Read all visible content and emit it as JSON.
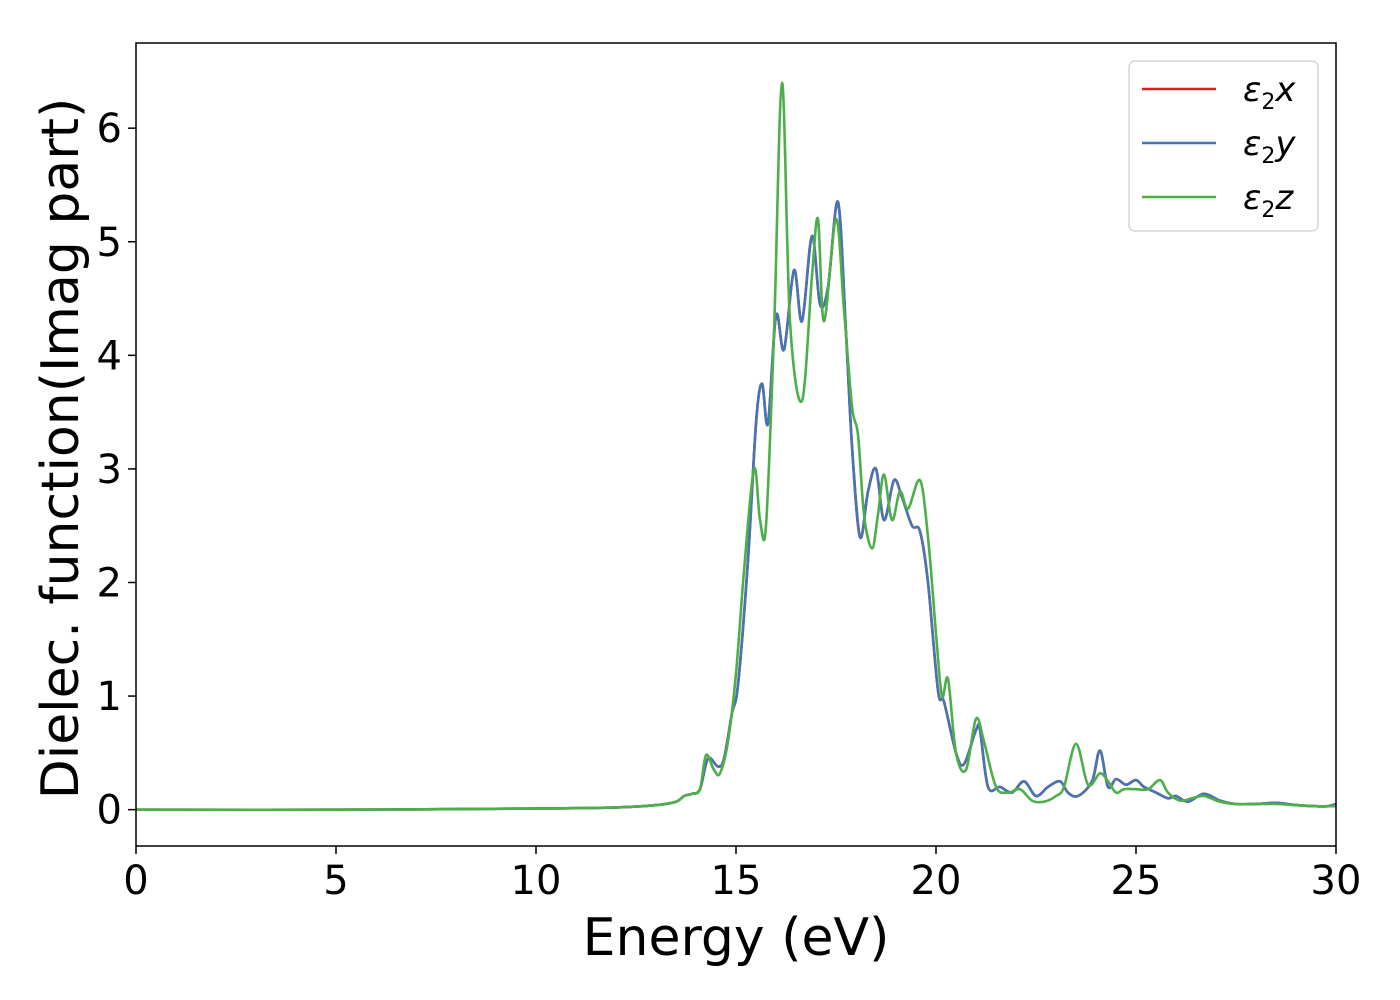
{
  "chart_data": {
    "type": "line",
    "title": "",
    "xlabel": "Energy (eV)",
    "ylabel": "Dielec. function(Imag part)",
    "xlim": [
      0,
      30
    ],
    "ylim": [
      -0.32,
      6.75
    ],
    "xticks": [
      0,
      5,
      10,
      15,
      20,
      25,
      30
    ],
    "yticks": [
      0,
      1,
      2,
      3,
      4,
      5,
      6
    ],
    "xtick_labels": [
      "0",
      "5",
      "10",
      "15",
      "20",
      "25",
      "30"
    ],
    "ytick_labels": [
      "0",
      "1",
      "2",
      "3",
      "4",
      "5",
      "6"
    ],
    "grid": false,
    "legend_position": "top-right",
    "series": [
      {
        "name": "ε2x",
        "legend_base": "ε",
        "legend_sub": "2",
        "legend_var": "x",
        "color": "#e41a1c",
        "x": [
          0,
          5,
          10,
          12,
          13,
          13.5,
          13.7,
          13.9,
          14.1,
          14.3,
          14.55,
          14.7,
          14.9,
          15.05,
          15.3,
          15.5,
          15.65,
          15.8,
          16.0,
          16.2,
          16.45,
          16.65,
          16.9,
          17.1,
          17.3,
          17.55,
          17.75,
          17.9,
          18.1,
          18.3,
          18.5,
          18.7,
          18.95,
          19.15,
          19.4,
          19.6,
          19.8,
          20.05,
          20.2,
          20.5,
          20.7,
          21.0,
          21.1,
          21.3,
          21.6,
          21.9,
          22.2,
          22.5,
          22.8,
          23.1,
          23.3,
          23.55,
          23.9,
          24.1,
          24.3,
          24.5,
          24.75,
          25.0,
          25.2,
          25.5,
          25.8,
          26.0,
          26.3,
          26.7,
          27.1,
          27.5,
          28.0,
          28.5,
          29.0,
          29.5,
          29.8,
          30.0
        ],
        "y": [
          0.0,
          0.0,
          0.01,
          0.02,
          0.04,
          0.07,
          0.12,
          0.14,
          0.18,
          0.45,
          0.38,
          0.45,
          0.85,
          1.1,
          2.2,
          3.4,
          3.75,
          3.4,
          4.35,
          4.05,
          4.75,
          4.3,
          5.05,
          4.45,
          4.6,
          5.35,
          4.2,
          3.2,
          2.4,
          2.8,
          3.0,
          2.55,
          2.9,
          2.75,
          2.5,
          2.45,
          2.0,
          1.05,
          0.95,
          0.5,
          0.4,
          0.7,
          0.7,
          0.2,
          0.2,
          0.15,
          0.25,
          0.12,
          0.2,
          0.25,
          0.15,
          0.12,
          0.25,
          0.52,
          0.2,
          0.27,
          0.22,
          0.26,
          0.2,
          0.15,
          0.1,
          0.12,
          0.07,
          0.14,
          0.08,
          0.05,
          0.05,
          0.06,
          0.04,
          0.03,
          0.03,
          0.05
        ]
      },
      {
        "name": "ε2y",
        "legend_base": "ε",
        "legend_sub": "2",
        "legend_var": "y",
        "color": "#4575b4",
        "x": [
          0,
          5,
          10,
          12,
          13,
          13.5,
          13.7,
          13.9,
          14.1,
          14.3,
          14.55,
          14.7,
          14.9,
          15.05,
          15.3,
          15.5,
          15.65,
          15.8,
          16.0,
          16.2,
          16.45,
          16.65,
          16.9,
          17.1,
          17.3,
          17.55,
          17.75,
          17.9,
          18.1,
          18.3,
          18.5,
          18.7,
          18.95,
          19.15,
          19.4,
          19.6,
          19.8,
          20.05,
          20.2,
          20.5,
          20.7,
          21.0,
          21.1,
          21.3,
          21.6,
          21.9,
          22.2,
          22.5,
          22.8,
          23.1,
          23.3,
          23.55,
          23.9,
          24.1,
          24.3,
          24.5,
          24.75,
          25.0,
          25.2,
          25.5,
          25.8,
          26.0,
          26.3,
          26.7,
          27.1,
          27.5,
          28.0,
          28.5,
          29.0,
          29.5,
          29.8,
          30.0
        ],
        "y": [
          0.0,
          0.0,
          0.01,
          0.02,
          0.04,
          0.07,
          0.12,
          0.14,
          0.18,
          0.45,
          0.38,
          0.45,
          0.85,
          1.1,
          2.2,
          3.4,
          3.75,
          3.4,
          4.35,
          4.05,
          4.75,
          4.3,
          5.05,
          4.45,
          4.6,
          5.35,
          4.2,
          3.2,
          2.4,
          2.8,
          3.0,
          2.55,
          2.9,
          2.75,
          2.5,
          2.45,
          2.0,
          1.05,
          0.95,
          0.5,
          0.4,
          0.7,
          0.7,
          0.2,
          0.2,
          0.15,
          0.25,
          0.12,
          0.2,
          0.25,
          0.15,
          0.12,
          0.25,
          0.52,
          0.2,
          0.27,
          0.22,
          0.26,
          0.2,
          0.15,
          0.1,
          0.12,
          0.07,
          0.14,
          0.08,
          0.05,
          0.05,
          0.06,
          0.04,
          0.03,
          0.03,
          0.05
        ]
      },
      {
        "name": "ε2z",
        "legend_base": "ε",
        "legend_sub": "2",
        "legend_var": "z",
        "color": "#4daf4a",
        "x": [
          0,
          5,
          10,
          12,
          13,
          13.5,
          13.7,
          13.9,
          14.1,
          14.25,
          14.45,
          14.6,
          14.8,
          15.0,
          15.2,
          15.45,
          15.6,
          15.75,
          15.95,
          16.15,
          16.35,
          16.65,
          16.9,
          17.05,
          17.2,
          17.5,
          17.7,
          17.9,
          18.05,
          18.2,
          18.4,
          18.55,
          18.7,
          18.9,
          19.1,
          19.3,
          19.6,
          19.8,
          20.0,
          20.15,
          20.3,
          20.5,
          20.75,
          21.0,
          21.2,
          21.5,
          21.8,
          22.1,
          22.4,
          22.7,
          23.0,
          23.2,
          23.5,
          23.8,
          24.1,
          24.3,
          24.5,
          24.7,
          25.0,
          25.3,
          25.6,
          25.8,
          26.1,
          26.4,
          26.7,
          27.1,
          27.5,
          28.0,
          28.5,
          29.0,
          29.5,
          30.0
        ],
        "y": [
          0.0,
          0.0,
          0.01,
          0.02,
          0.04,
          0.07,
          0.12,
          0.14,
          0.18,
          0.48,
          0.35,
          0.32,
          0.6,
          1.2,
          2.1,
          3.0,
          2.55,
          2.5,
          4.2,
          6.4,
          4.3,
          3.6,
          4.7,
          5.2,
          4.3,
          5.2,
          4.4,
          3.55,
          3.3,
          2.6,
          2.3,
          2.6,
          2.95,
          2.55,
          2.8,
          2.65,
          2.9,
          2.4,
          1.55,
          1.0,
          1.15,
          0.5,
          0.35,
          0.8,
          0.6,
          0.2,
          0.15,
          0.18,
          0.08,
          0.07,
          0.12,
          0.2,
          0.58,
          0.22,
          0.32,
          0.25,
          0.15,
          0.18,
          0.18,
          0.18,
          0.26,
          0.15,
          0.08,
          0.1,
          0.12,
          0.07,
          0.05,
          0.05,
          0.05,
          0.04,
          0.03,
          0.03
        ]
      }
    ]
  }
}
